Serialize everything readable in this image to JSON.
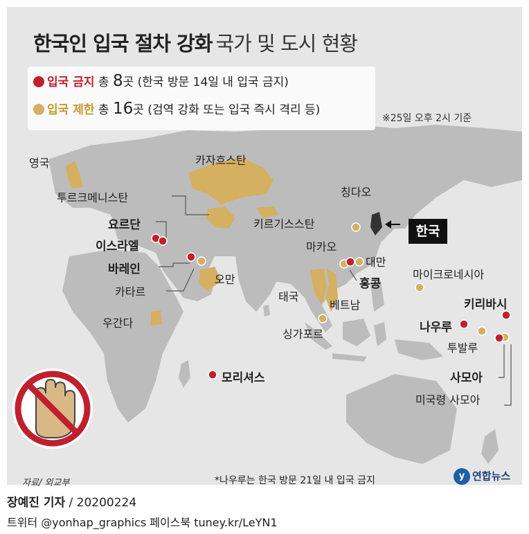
{
  "title": {
    "bold": "한국인 입국 절차 강화",
    "light": "국가 및 도시 현황"
  },
  "legend": {
    "ban": {
      "label": "입국 금지",
      "total_prefix": "총",
      "count": "8",
      "count_suffix": "곳",
      "desc": "(한국 방문 14일 내 입국 금지)",
      "color": "#c0202e"
    },
    "restrict": {
      "label": "입국 제한",
      "total_prefix": "총",
      "count": "16",
      "count_suffix": "곳",
      "desc": "(검역 강화 또는 입국 즉시 격리 등)",
      "color": "#d4b060"
    }
  },
  "reference_time": "※25일 오후 2시 기준",
  "places": {
    "uk": "영국",
    "kazakhstan": "카자흐스탄",
    "turkmenistan": "투르크메니스탄",
    "jordan": "요르단",
    "israel": "이스라엘",
    "bahrain": "바레인",
    "qatar": "카타르",
    "oman": "오만",
    "kyrgyzstan": "키르기스스탄",
    "qingdao": "칭다오",
    "korea": "한국",
    "macau": "마카오",
    "taiwan": "대만",
    "hongkong": "홍콩",
    "thailand": "태국",
    "vietnam": "베트남",
    "singapore": "싱가포르",
    "micronesia": "마이크로네시아",
    "kiribati": "키리바시",
    "nauru": "나우루",
    "tuvalu": "투발루",
    "samoa": "사모아",
    "american_samoa": "미국령 사모아",
    "uganda": "우간다",
    "mauritius": "모리셔스"
  },
  "source": "자료/ 외교부",
  "footnote": "*나우루는 한국 방문 21일 내 입국 금지",
  "logo": {
    "mark": "y",
    "text": "연합뉴스"
  },
  "reporter": {
    "name": "장예진 기자",
    "date": "/ 20200224"
  },
  "social": "트위터 @yonhap_graphics  페이스북 tuney.kr/LeYN1",
  "colors": {
    "land": "#bcbcbc",
    "sea": "#e6e6e6",
    "restrict": "#d4b060",
    "ban": "#c0202e",
    "stop_ring": "#c0202e"
  },
  "icons": {
    "stop_sign": "no-entry-hand-icon",
    "arrow": "arrow-left-icon"
  }
}
